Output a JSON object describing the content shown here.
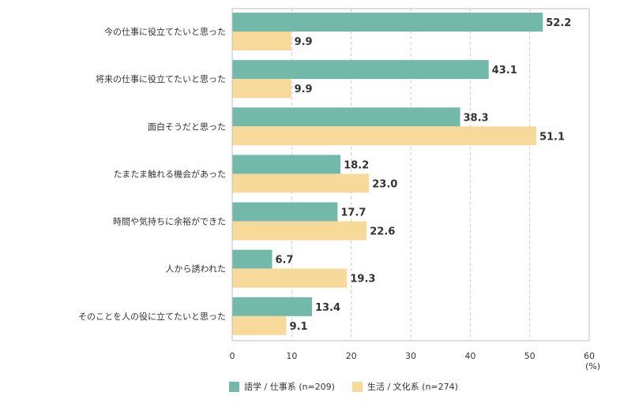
{
  "chart_data": {
    "type": "bar",
    "orientation": "horizontal",
    "categories": [
      "今の仕事に役立てたいと思った",
      "将来の仕事に役立てたいと思った",
      "面白そうだと思った",
      "たまたま触れる機会があった",
      "時間や気持ちに余裕ができた",
      "人から誘われた",
      "そのことを人の役に立てたいと思った"
    ],
    "series": [
      {
        "name": "語学 / 仕事系 (n=209)",
        "color": "#72b9aa",
        "values": [
          52.2,
          43.1,
          38.3,
          18.2,
          17.7,
          6.7,
          13.4
        ],
        "labels": [
          "52.2",
          "43.1",
          "38.3",
          "18.2",
          "17.7",
          "6.7",
          "13.4"
        ]
      },
      {
        "name": "生活 / 文化系 (n=274)",
        "color": "#f7da9a",
        "values": [
          9.9,
          9.9,
          51.1,
          23.0,
          22.6,
          19.3,
          9.1
        ],
        "labels": [
          "9.9",
          "9.9",
          "51.1",
          "23.0",
          "22.6",
          "19.3",
          "9.1"
        ]
      }
    ],
    "xlim": [
      0,
      60
    ],
    "xticks": [
      "0",
      "10",
      "20",
      "30",
      "40",
      "50",
      "60"
    ],
    "unit": "(%)",
    "grid": true,
    "legend_position": "bottom"
  }
}
